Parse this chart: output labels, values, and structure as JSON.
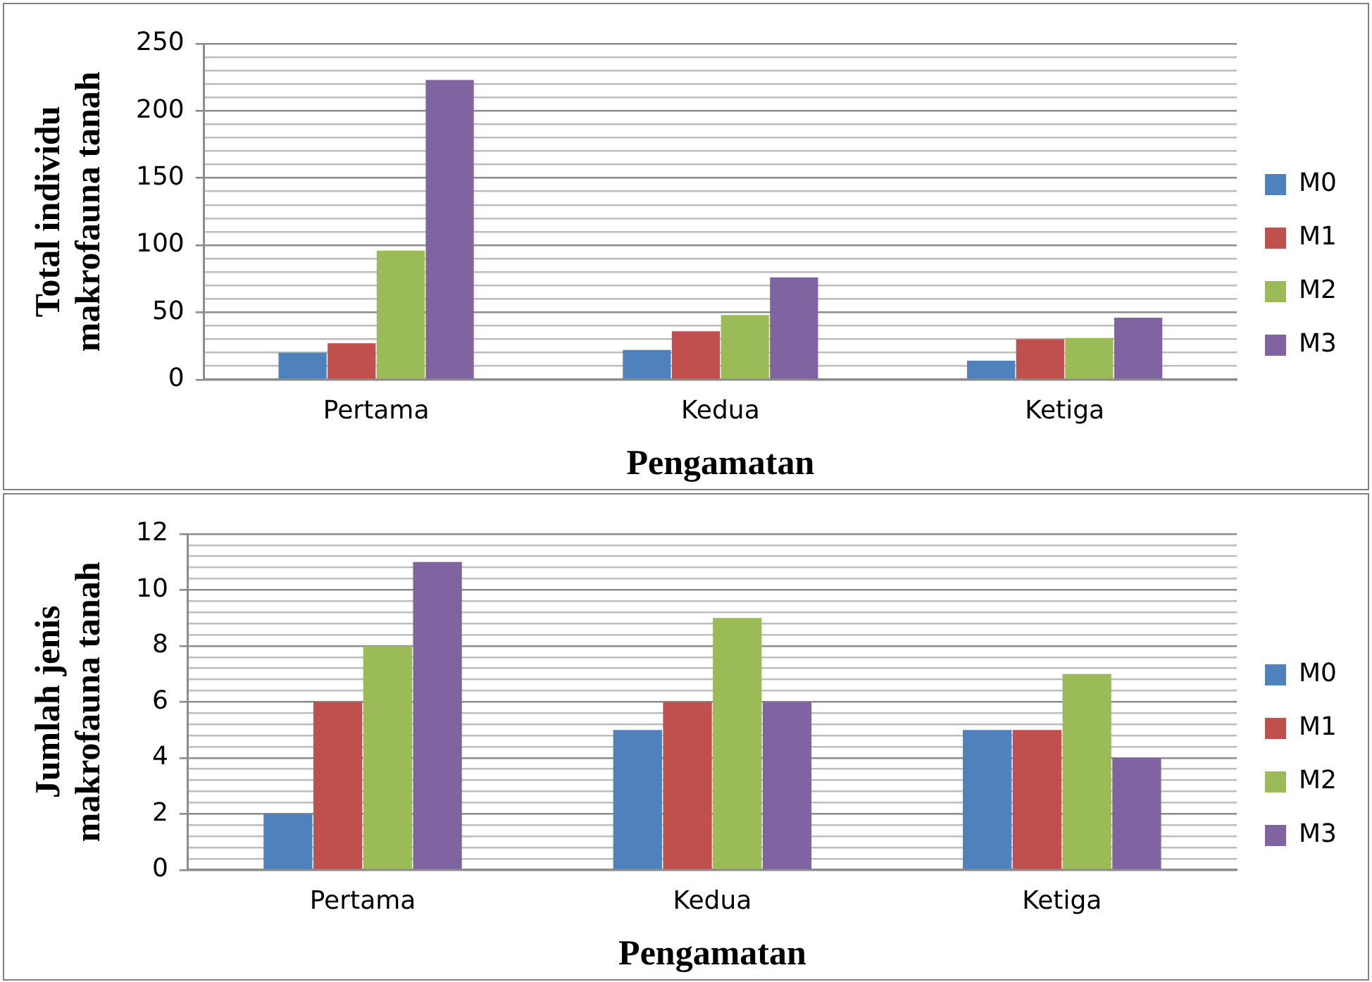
{
  "chart_data": [
    {
      "type": "bar",
      "xlabel": "Pengamatan",
      "ylabel": "Total individu makrofauna tanah",
      "categories": [
        "Pertama",
        "Kedua",
        "Ketiga"
      ],
      "series": [
        {
          "name": "M0",
          "color": "#4f81bd",
          "values": [
            20,
            22,
            14
          ]
        },
        {
          "name": "M1",
          "color": "#c0504d",
          "values": [
            27,
            36,
            30
          ]
        },
        {
          "name": "M2",
          "color": "#9bbb59",
          "values": [
            96,
            48,
            31
          ]
        },
        {
          "name": "M3",
          "color": "#8064a2",
          "values": [
            223,
            76,
            46
          ]
        }
      ],
      "ylim": [
        0,
        250
      ],
      "yticks": [
        0,
        {
          "value": 10,
          "label": null
        },
        {
          "value": 20,
          "label": null
        },
        {
          "value": 30,
          "label": null
        },
        {
          "value": 40,
          "label": null
        },
        50,
        {
          "value": 60,
          "label": null
        },
        {
          "value": 70,
          "label": null
        },
        {
          "value": 80,
          "label": null
        },
        {
          "value": 90,
          "label": null
        },
        100,
        {
          "value": 110,
          "label": null
        },
        {
          "value": 120,
          "label": null
        },
        {
          "value": 130,
          "label": null
        },
        {
          "value": 140,
          "label": null
        },
        150,
        {
          "value": 160,
          "label": null
        },
        {
          "value": 170,
          "label": null
        },
        {
          "value": 180,
          "label": null
        },
        {
          "value": 190,
          "label": null
        },
        200,
        {
          "value": 210,
          "label": null
        },
        {
          "value": 220,
          "label": null
        },
        {
          "value": 230,
          "label": null
        },
        {
          "value": 240,
          "label": null
        },
        250
      ],
      "grid": "y",
      "legend": "right"
    },
    {
      "type": "bar",
      "xlabel": "Pengamatan",
      "ylabel": "Jumlah jenis makrofauna tanah",
      "categories": [
        "Pertama",
        "Kedua",
        "Ketiga"
      ],
      "series": [
        {
          "name": "M0",
          "color": "#4f81bd",
          "values": [
            2,
            5,
            5
          ]
        },
        {
          "name": "M1",
          "color": "#c0504d",
          "values": [
            6,
            6,
            5
          ]
        },
        {
          "name": "M2",
          "color": "#9bbb59",
          "values": [
            8,
            9,
            7
          ]
        },
        {
          "name": "M3",
          "color": "#8064a2",
          "values": [
            11,
            6,
            4
          ]
        }
      ],
      "ylim": [
        0,
        12
      ],
      "yticks": [
        0,
        {
          "value": 0.4,
          "label": null
        },
        {
          "value": 0.8,
          "label": null
        },
        {
          "value": 1.2,
          "label": null
        },
        {
          "value": 1.6,
          "label": null
        },
        2,
        {
          "value": 2.4,
          "label": null
        },
        {
          "value": 2.8,
          "label": null
        },
        {
          "value": 3.2,
          "label": null
        },
        {
          "value": 3.6,
          "label": null
        },
        4,
        {
          "value": 4.4,
          "label": null
        },
        {
          "value": 4.8,
          "label": null
        },
        {
          "value": 5.2,
          "label": null
        },
        {
          "value": 5.6,
          "label": null
        },
        6,
        {
          "value": 6.4,
          "label": null
        },
        {
          "value": 6.8,
          "label": null
        },
        {
          "value": 7.2,
          "label": null
        },
        {
          "value": 7.6,
          "label": null
        },
        8,
        {
          "value": 8.4,
          "label": null
        },
        {
          "value": 8.8,
          "label": null
        },
        {
          "value": 9.2,
          "label": null
        },
        {
          "value": 9.6,
          "label": null
        },
        10,
        {
          "value": 10.4,
          "label": null
        },
        {
          "value": 10.8,
          "label": null
        },
        {
          "value": 11.2,
          "label": null
        },
        {
          "value": 11.6,
          "label": null
        },
        12
      ],
      "grid": "y",
      "legend": "right"
    }
  ]
}
